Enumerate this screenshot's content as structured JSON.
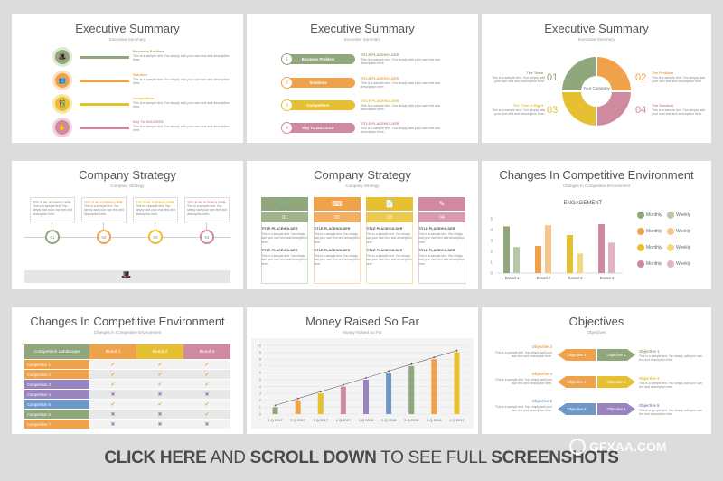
{
  "colors": {
    "green": "#8fa77a",
    "orange": "#f0a24a",
    "yellow": "#e7c032",
    "pink": "#cf8aa0",
    "purple": "#9a84c0",
    "blue": "#6f97c9"
  },
  "slide1": {
    "title": "Executive Summary",
    "subtitle": "Executive Summary",
    "items": [
      {
        "label": "Business Problem",
        "text": "This is a sample text. You simply add your own text and description here."
      },
      {
        "label": "Solution",
        "text": "This is a sample text. You simply add your own text and description here."
      },
      {
        "label": "Competition",
        "text": "This is a sample text. You simply add your own text and description here."
      },
      {
        "label": "Key To SUCCESS",
        "text": "This is a sample text. You simply add your own text and description here."
      }
    ]
  },
  "slide2": {
    "title": "Executive Summary",
    "subtitle": "Executive Summary",
    "items": [
      {
        "num": "1",
        "label": "Business Problem",
        "heading": "TITLE PLACEHOLDER",
        "text": "This is a sample text. You simply add your own text and description here."
      },
      {
        "num": "2",
        "label": "Solutions",
        "heading": "TITLE PLACEHOLDER",
        "text": "This is a sample text. You simply add your own text and description here."
      },
      {
        "num": "3",
        "label": "Competitors",
        "heading": "TITLE PLACEHOLDER",
        "text": "This is a sample text. You simply add your own text and description here."
      },
      {
        "num": "4",
        "label": "Key To SUCCESS",
        "heading": "TITLE PLACEHOLDER",
        "text": "This is a sample text. You simply add your own text and description here."
      }
    ]
  },
  "slide3": {
    "title": "Executive Summary",
    "subtitle": "Executive Summary",
    "center": "Your Company",
    "quadrants": [
      {
        "num": "01",
        "label": "The Team",
        "text": "This is a sample text. You simply add your own text and description here."
      },
      {
        "num": "02",
        "label": "The Problem",
        "text": "This is a sample text. You simply add your own text and description here."
      },
      {
        "num": "03",
        "label": "The Time is Right",
        "text": "This is a sample text. You simply add your own text and description here."
      },
      {
        "num": "04",
        "label": "The Solution",
        "text": "This is a sample text. You simply add your own text and description here."
      }
    ]
  },
  "slide4": {
    "title": "Company Strategy",
    "subtitle": "Company Strategy",
    "items": [
      {
        "num": "01",
        "heading": "TITLE PLACEHOLDER",
        "text": "This is a sample text. You simply add your own text and description here."
      },
      {
        "num": "02",
        "heading": "TITLE PLACEHOLDER",
        "text": "This is a sample text. You simply add your own text and description here."
      },
      {
        "num": "03",
        "heading": "TITLE PLACEHOLDER",
        "text": "This is a sample text. You simply add your own text and description here."
      },
      {
        "num": "04",
        "heading": "TITLE PLACEHOLDER",
        "text": "This is a sample text. You simply add your own text and description here."
      }
    ]
  },
  "slide5": {
    "title": "Company Strategy",
    "subtitle": "Company Strategy",
    "cols": [
      {
        "num": "01",
        "heading": "TITLE PLACEHOLDER",
        "text": "This is a sample text. You simply add your own text and description here."
      },
      {
        "num": "02",
        "heading": "TITLE PLACEHOLDER",
        "text": "This is a sample text. You simply add your own text and description here."
      },
      {
        "num": "03",
        "heading": "TITLE PLACEHOLDER",
        "text": "This is a sample text. You simply add your own text and description here."
      },
      {
        "num": "04",
        "heading": "TITLE PLACEHOLDER",
        "text": "This is a sample text. You simply add your own text and description here."
      }
    ]
  },
  "slide6": {
    "title": "Changes In Competitive Environment",
    "subtitle": "Changes In Competitive Environment",
    "chart_title": "ENGAGEMENT",
    "legend": [
      [
        "Monthly",
        "Weekly"
      ],
      [
        "Monthly",
        "Weekly"
      ],
      [
        "Monthly",
        "Weekly"
      ],
      [
        "Monthly",
        "Weekly"
      ]
    ]
  },
  "slide7": {
    "title": "Changes In Competitive Environment",
    "subtitle": "Changes In Competitive Environment",
    "headers": [
      "Competitive Landscape",
      "Brand 1",
      "Brand 2",
      "Brand 3"
    ],
    "rows": [
      {
        "name": "Competition 1",
        "marks": [
          "✔",
          "✔",
          "✔"
        ]
      },
      {
        "name": "Competition 2",
        "marks": [
          "✔",
          "✔",
          "✔"
        ]
      },
      {
        "name": "Competition 3",
        "marks": [
          "✔",
          "✔",
          "✔"
        ]
      },
      {
        "name": "Competition 4",
        "marks": [
          "✖",
          "✖",
          "✖"
        ]
      },
      {
        "name": "Competition 5",
        "marks": [
          "✔",
          "✔",
          "✔"
        ]
      },
      {
        "name": "Competition 6",
        "marks": [
          "✖",
          "✖",
          "✔"
        ]
      },
      {
        "name": "Competition 7",
        "marks": [
          "✖",
          "✖",
          "✖"
        ]
      }
    ]
  },
  "slide8": {
    "title": "Money Raised  So Far",
    "subtitle": "Money Raised  So Far"
  },
  "slide9": {
    "title": "Objectives",
    "subtitle": "Objectives",
    "rows": [
      {
        "left": "Objective 2",
        "right": "Objective 1",
        "text": "This is a sample text. You simply add your own text and description here."
      },
      {
        "left": "Objective 4",
        "right": "Objective 3",
        "text": "This is a sample text. You simply add your own text and description here."
      },
      {
        "left": "Objective 6",
        "right": "Objective 5",
        "text": "This is a sample text. You simply add your own text and description here."
      }
    ]
  },
  "banner": {
    "part1": "CLICK HERE",
    "part2": " AND ",
    "part3": "SCROLL DOWN",
    "part4": " TO SEE FULL ",
    "part5": "SCREENSHOTS"
  },
  "watermark": "GFXAA.COM",
  "chart_data": [
    {
      "type": "bar",
      "title": "ENGAGEMENT",
      "categories": [
        "Brand 1",
        "Brand 2",
        "Brand 3",
        "Brand 4"
      ],
      "series": [
        {
          "name": "Monthly",
          "values": [
            4.3,
            2.5,
            3.5,
            4.5
          ]
        },
        {
          "name": "Weekly",
          "values": [
            2.4,
            4.4,
            1.8,
            2.8
          ]
        }
      ],
      "ylim": [
        0,
        5
      ],
      "yticks": [
        "0",
        "1",
        "2",
        "3",
        "4",
        "5"
      ]
    },
    {
      "type": "bar",
      "categories": [
        "1 Q 2017",
        "2 Q 2017",
        "3 Q 2017",
        "4 Q 2017",
        "1 Q 2018",
        "2 Q 2018",
        "3 Q 2018",
        "4 Q 2018",
        "1 Q 2017"
      ],
      "values": [
        1,
        2,
        3,
        4,
        5,
        6,
        7,
        8,
        9
      ],
      "ylim": [
        0,
        10
      ],
      "yticks": [
        "0",
        "1",
        "2",
        "3",
        "4",
        "5",
        "6",
        "7",
        "8",
        "9",
        "10"
      ]
    }
  ]
}
